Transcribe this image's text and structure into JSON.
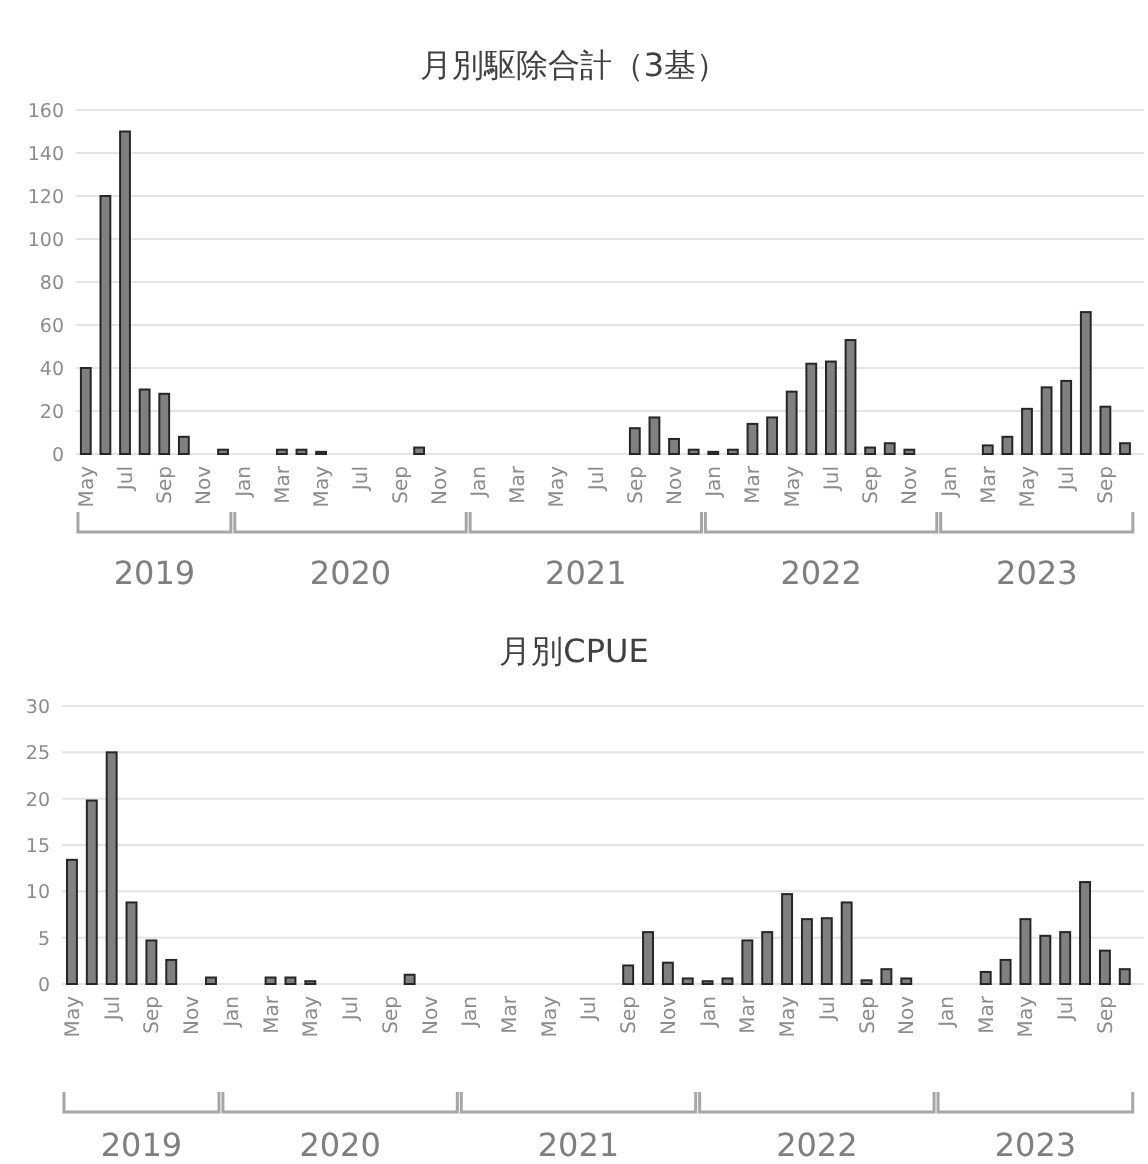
{
  "chart_data": [
    {
      "type": "bar",
      "title": "月別駆除合計（3基）",
      "color": "#808080",
      "grid": "y",
      "x": [
        "2019-05",
        "2019-06",
        "2019-07",
        "2019-08",
        "2019-09",
        "2019-10",
        "2019-11",
        "2019-12",
        "2020-01",
        "2020-02",
        "2020-03",
        "2020-04",
        "2020-05",
        "2020-06",
        "2020-07",
        "2020-08",
        "2020-09",
        "2020-10",
        "2020-11",
        "2020-12",
        "2021-01",
        "2021-02",
        "2021-03",
        "2021-04",
        "2021-05",
        "2021-06",
        "2021-07",
        "2021-08",
        "2021-09",
        "2021-10",
        "2021-11",
        "2021-12",
        "2022-01",
        "2022-02",
        "2022-03",
        "2022-04",
        "2022-05",
        "2022-06",
        "2022-07",
        "2022-08",
        "2022-09",
        "2022-10",
        "2022-11",
        "2022-12",
        "2023-01",
        "2023-02",
        "2023-03",
        "2023-04",
        "2023-05",
        "2023-06",
        "2023-07",
        "2023-08",
        "2023-09",
        "2023-10"
      ],
      "values": [
        40,
        120,
        150,
        30,
        28,
        8,
        0,
        2,
        0,
        0,
        2,
        2,
        1,
        0,
        0,
        0,
        0,
        3,
        0,
        0,
        0,
        0,
        0,
        0,
        0,
        0,
        0,
        0,
        12,
        17,
        7,
        2,
        1,
        2,
        14,
        17,
        29,
        42,
        43,
        53,
        3,
        5,
        2,
        0,
        0,
        0,
        4,
        8,
        21,
        31,
        34,
        66,
        22,
        5
      ],
      "xlim": [
        "2019-04-16",
        "2023-10-31"
      ],
      "xticks": [
        {
          "value": "2019-05",
          "label": "May"
        },
        {
          "value": "2019-07",
          "label": "Jul"
        },
        {
          "value": "2019-09",
          "label": "Sep"
        },
        {
          "value": "2019-11",
          "label": "Nov"
        },
        {
          "value": "2020-01",
          "label": "Jan"
        },
        {
          "value": "2020-03",
          "label": "Mar"
        },
        {
          "value": "2020-05",
          "label": "May"
        },
        {
          "value": "2020-07",
          "label": "Jul"
        },
        {
          "value": "2020-09",
          "label": "Sep"
        },
        {
          "value": "2020-11",
          "label": "Nov"
        },
        {
          "value": "2021-01",
          "label": "Jan"
        },
        {
          "value": "2021-03",
          "label": "Mar"
        },
        {
          "value": "2021-05",
          "label": "May"
        },
        {
          "value": "2021-07",
          "label": "Jul"
        },
        {
          "value": "2021-09",
          "label": "Sep"
        },
        {
          "value": "2021-11",
          "label": "Nov"
        },
        {
          "value": "2022-01",
          "label": "Jan"
        },
        {
          "value": "2022-03",
          "label": "Mar"
        },
        {
          "value": "2022-05",
          "label": "May"
        },
        {
          "value": "2022-07",
          "label": "Jul"
        },
        {
          "value": "2022-09",
          "label": "Sep"
        },
        {
          "value": "2022-11",
          "label": "Nov"
        },
        {
          "value": "2023-01",
          "label": "Jan"
        },
        {
          "value": "2023-03",
          "label": "Mar"
        },
        {
          "value": "2023-05",
          "label": "May"
        },
        {
          "value": "2023-07",
          "label": "Jul"
        },
        {
          "value": "2023-09",
          "label": "Sep"
        }
      ],
      "ylim": [
        0,
        160
      ],
      "yticks": [
        0,
        20,
        40,
        60,
        80,
        100,
        120,
        140,
        160
      ],
      "annotations": [
        "2019",
        "2020",
        "2021",
        "2022",
        "2023"
      ]
    },
    {
      "type": "bar",
      "title": "月別CPUE",
      "color": "#808080",
      "grid": "y",
      "x": [
        "2019-05",
        "2019-06",
        "2019-07",
        "2019-08",
        "2019-09",
        "2019-10",
        "2019-11",
        "2019-12",
        "2020-01",
        "2020-02",
        "2020-03",
        "2020-04",
        "2020-05",
        "2020-06",
        "2020-07",
        "2020-08",
        "2020-09",
        "2020-10",
        "2020-11",
        "2020-12",
        "2021-01",
        "2021-02",
        "2021-03",
        "2021-04",
        "2021-05",
        "2021-06",
        "2021-07",
        "2021-08",
        "2021-09",
        "2021-10",
        "2021-11",
        "2021-12",
        "2022-01",
        "2022-02",
        "2022-03",
        "2022-04",
        "2022-05",
        "2022-06",
        "2022-07",
        "2022-08",
        "2022-09",
        "2022-10",
        "2022-11",
        "2022-12",
        "2023-01",
        "2023-02",
        "2023-03",
        "2023-04",
        "2023-05",
        "2023-06",
        "2023-07",
        "2023-08",
        "2023-09",
        "2023-10"
      ],
      "values": [
        13.4,
        19.8,
        25,
        8.8,
        4.7,
        2.6,
        0,
        0.7,
        0,
        0,
        0.7,
        0.7,
        0.3,
        0,
        0,
        0,
        0,
        1,
        0,
        0,
        0,
        0,
        0,
        0,
        0,
        0,
        0,
        0,
        2,
        5.6,
        2.3,
        0.6,
        0.3,
        0.6,
        4.7,
        5.6,
        9.7,
        7,
        7.1,
        8.8,
        0.4,
        1.6,
        0.6,
        0,
        0,
        0,
        1.3,
        2.6,
        7,
        5.2,
        5.6,
        11,
        3.6,
        1.6
      ],
      "xlim": [
        "2019-04-16",
        "2023-10-31"
      ],
      "xticks": [
        {
          "value": "2019-05",
          "label": "May"
        },
        {
          "value": "2019-07",
          "label": "Jul"
        },
        {
          "value": "2019-09",
          "label": "Sep"
        },
        {
          "value": "2019-11",
          "label": "Nov"
        },
        {
          "value": "2020-01",
          "label": "Jan"
        },
        {
          "value": "2020-03",
          "label": "Mar"
        },
        {
          "value": "2020-05",
          "label": "May"
        },
        {
          "value": "2020-07",
          "label": "Jul"
        },
        {
          "value": "2020-09",
          "label": "Sep"
        },
        {
          "value": "2020-11",
          "label": "Nov"
        },
        {
          "value": "2021-01",
          "label": "Jan"
        },
        {
          "value": "2021-03",
          "label": "Mar"
        },
        {
          "value": "2021-05",
          "label": "May"
        },
        {
          "value": "2021-07",
          "label": "Jul"
        },
        {
          "value": "2021-09",
          "label": "Sep"
        },
        {
          "value": "2021-11",
          "label": "Nov"
        },
        {
          "value": "2022-01",
          "label": "Jan"
        },
        {
          "value": "2022-03",
          "label": "Mar"
        },
        {
          "value": "2022-05",
          "label": "May"
        },
        {
          "value": "2022-07",
          "label": "Jul"
        },
        {
          "value": "2022-09",
          "label": "Sep"
        },
        {
          "value": "2022-11",
          "label": "Nov"
        },
        {
          "value": "2023-01",
          "label": "Jan"
        },
        {
          "value": "2023-03",
          "label": "Mar"
        },
        {
          "value": "2023-05",
          "label": "May"
        },
        {
          "value": "2023-07",
          "label": "Jul"
        },
        {
          "value": "2023-09",
          "label": "Sep"
        }
      ],
      "ylim": [
        0,
        30
      ],
      "yticks": [
        0,
        5,
        10,
        15,
        20,
        25,
        30
      ],
      "annotations": [
        "2019",
        "2020",
        "2021",
        "2022",
        "2023"
      ]
    }
  ]
}
